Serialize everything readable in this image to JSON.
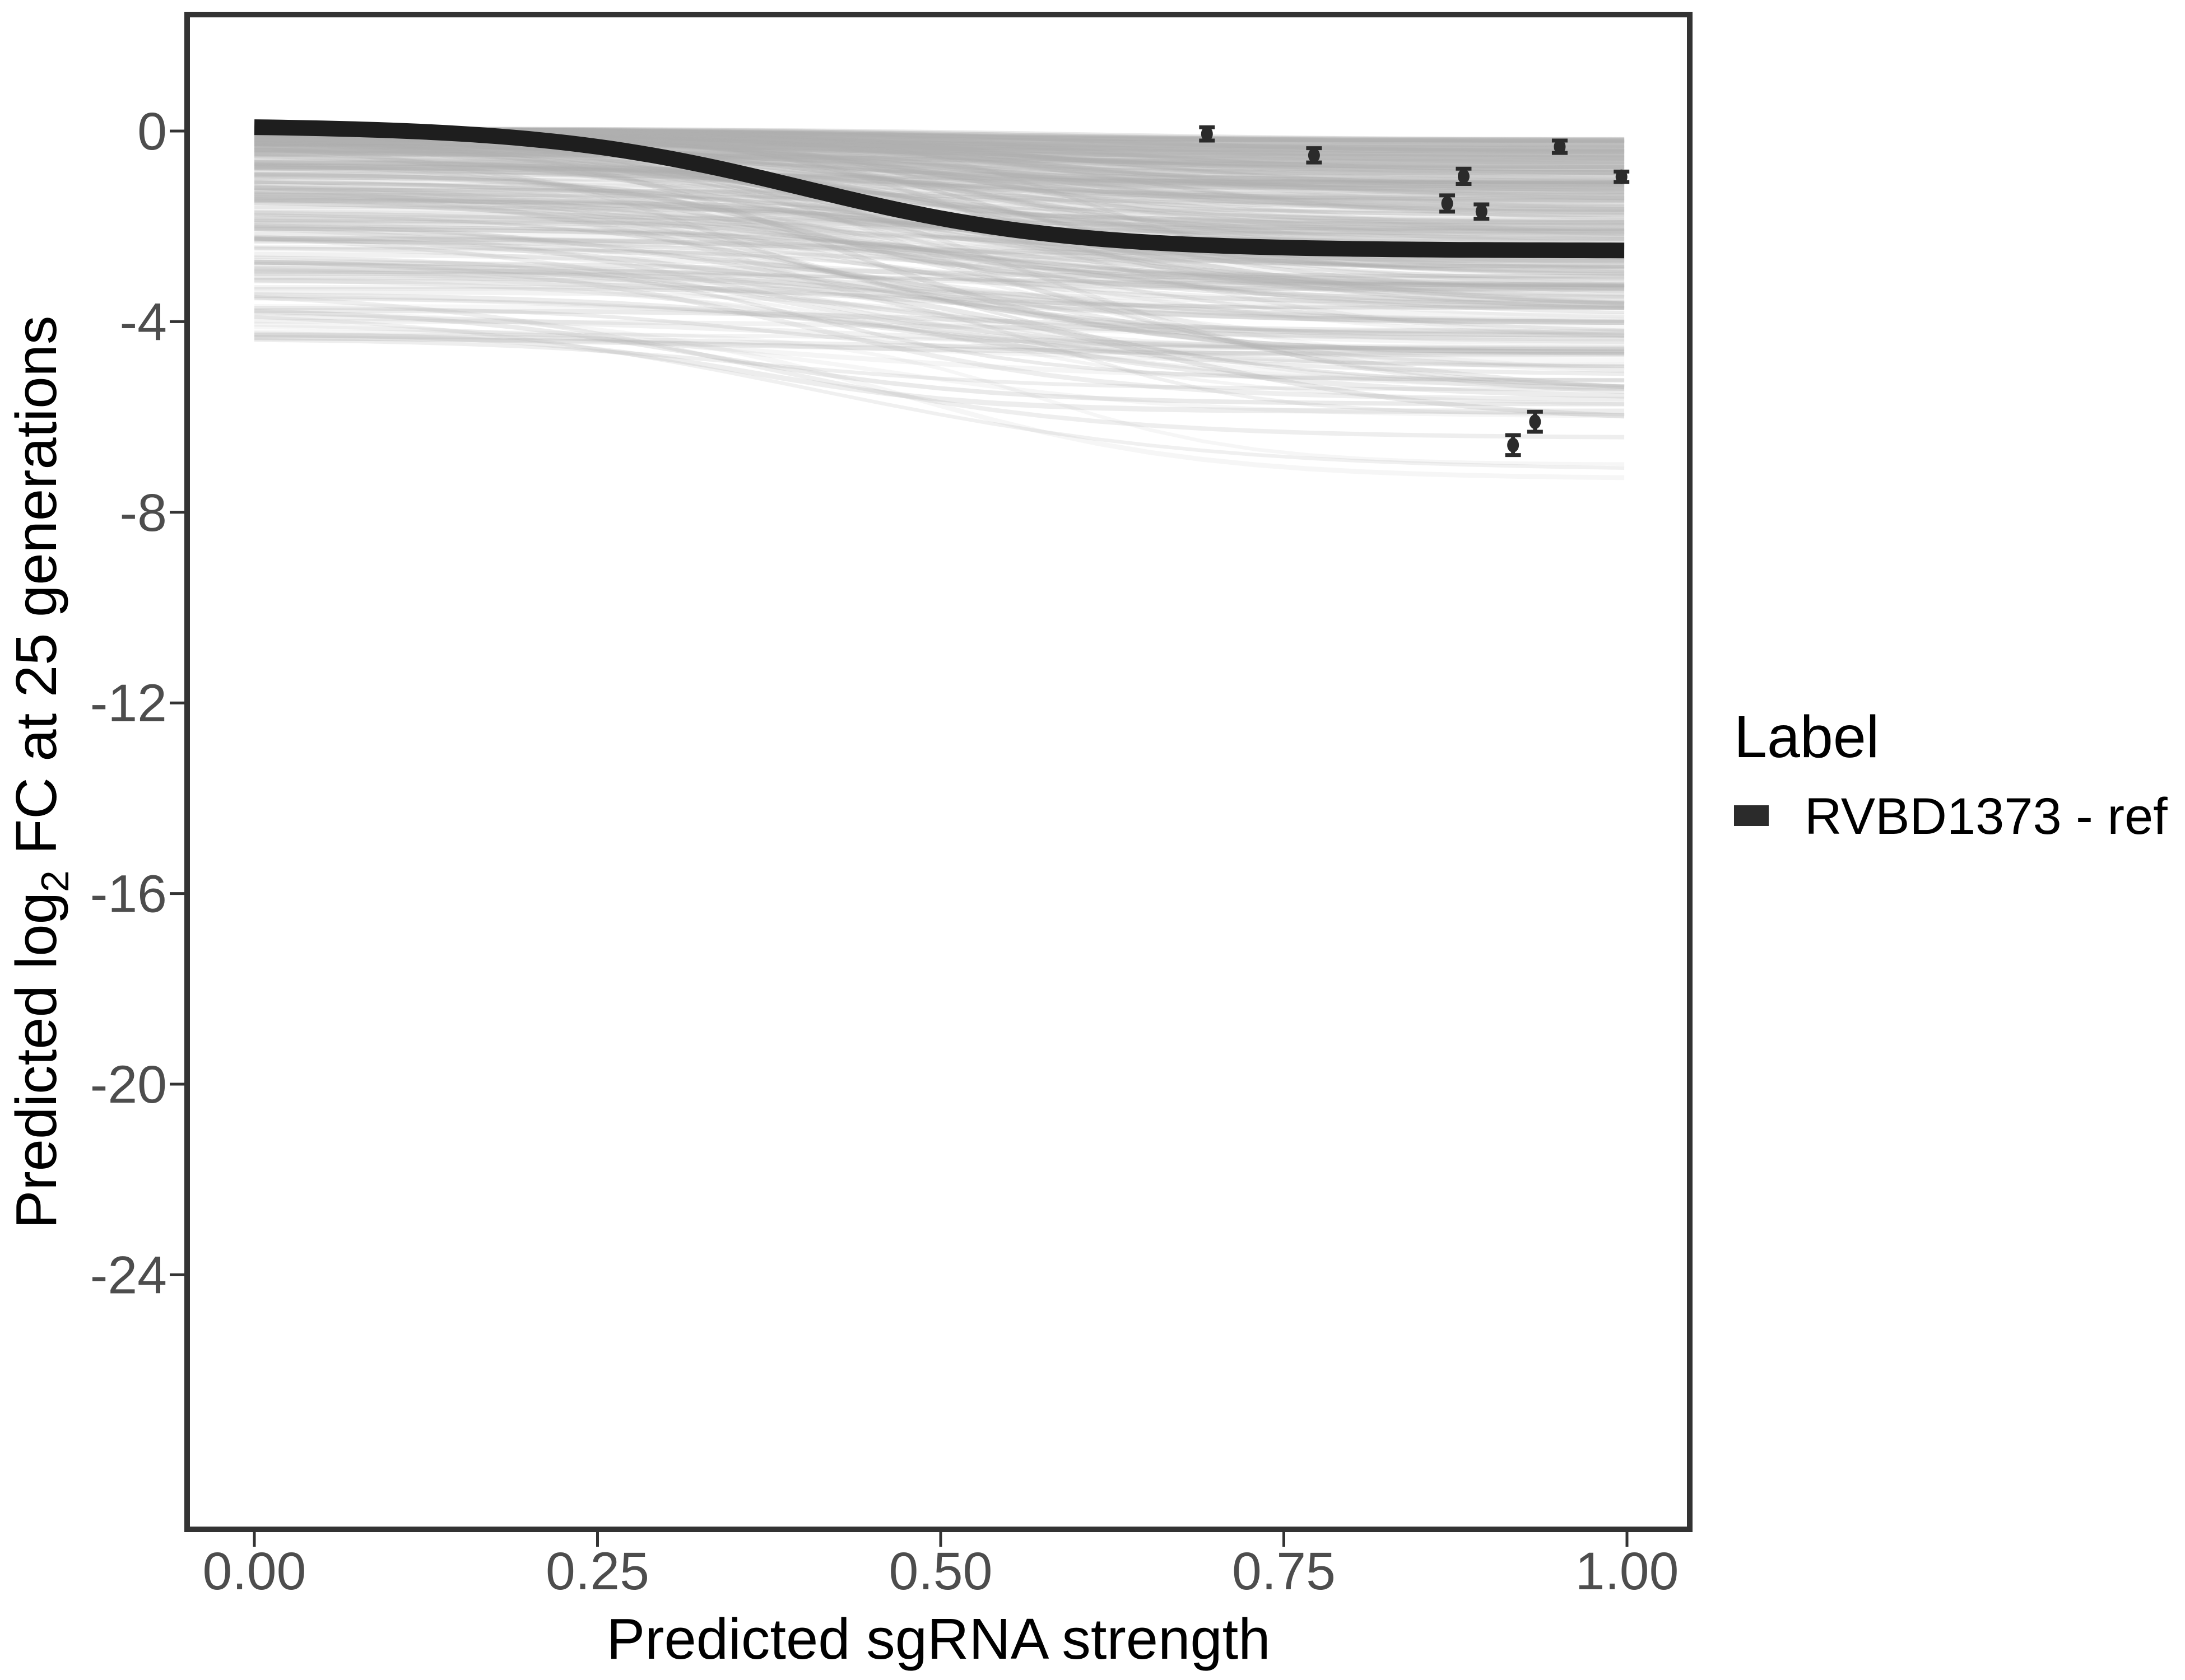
{
  "chart_data": {
    "type": "line",
    "title": "",
    "xlabel": "Predicted sgRNA strength",
    "ylabel": "Predicted log2 FC at 25 generations",
    "ylabel_parts": {
      "prefix": "Predicted  log",
      "subscript": "2",
      "suffix": " FC at 25 generations"
    },
    "xlim": [
      -0.05,
      1.046
    ],
    "ylim": [
      -29.3,
      2.44
    ],
    "grid": "off",
    "legend_position": "right",
    "x_ticks": [
      {
        "value": 0.0,
        "label": "0.00"
      },
      {
        "value": 0.25,
        "label": "0.25"
      },
      {
        "value": 0.5,
        "label": "0.50"
      },
      {
        "value": 0.75,
        "label": "0.75"
      },
      {
        "value": 1.0,
        "label": "1.00"
      }
    ],
    "y_ticks": [
      {
        "value": 0,
        "label": "0"
      },
      {
        "value": -4,
        "label": "-4"
      },
      {
        "value": -8,
        "label": "-8"
      },
      {
        "value": -12,
        "label": "-12"
      },
      {
        "value": -16,
        "label": "-16"
      },
      {
        "value": -20,
        "label": "-20"
      },
      {
        "value": -24,
        "label": "-24"
      }
    ],
    "reference_curve": {
      "name": "RVBD1373 - ref",
      "color": "#1e1e1e",
      "stroke_width": 28,
      "model": {
        "type": "logistic",
        "top": 0.12,
        "drop": 2.63,
        "midpoint": 0.4,
        "rate": 0.095,
        "x_start": 0.0,
        "x_end": 0.998
      },
      "points": [
        {
          "x": 0.0,
          "y": 0.08
        },
        {
          "x": 0.05,
          "y": 0.06
        },
        {
          "x": 0.1,
          "y": 0.01
        },
        {
          "x": 0.15,
          "y": -0.06
        },
        {
          "x": 0.2,
          "y": -0.17
        },
        {
          "x": 0.25,
          "y": -0.33
        },
        {
          "x": 0.3,
          "y": -0.56
        },
        {
          "x": 0.35,
          "y": -0.86
        },
        {
          "x": 0.4,
          "y": -1.2
        },
        {
          "x": 0.45,
          "y": -1.53
        },
        {
          "x": 0.5,
          "y": -1.83
        },
        {
          "x": 0.55,
          "y": -2.06
        },
        {
          "x": 0.6,
          "y": -2.22
        },
        {
          "x": 0.65,
          "y": -2.33
        },
        {
          "x": 0.7,
          "y": -2.4
        },
        {
          "x": 0.75,
          "y": -2.45
        },
        {
          "x": 0.8,
          "y": -2.47
        },
        {
          "x": 0.85,
          "y": -2.49
        },
        {
          "x": 0.9,
          "y": -2.5
        },
        {
          "x": 0.95,
          "y": -2.5
        },
        {
          "x": 1.0,
          "y": -2.51
        }
      ]
    },
    "measured_points": [
      {
        "x": 0.694,
        "y": -0.06,
        "err": 0.14
      },
      {
        "x": 0.772,
        "y": -0.51,
        "err": 0.15
      },
      {
        "x": 0.869,
        "y": -1.52,
        "err": 0.17
      },
      {
        "x": 0.881,
        "y": -0.95,
        "err": 0.16
      },
      {
        "x": 0.894,
        "y": -1.69,
        "err": 0.15
      },
      {
        "x": 0.917,
        "y": -6.59,
        "err": 0.21
      },
      {
        "x": 0.933,
        "y": -6.1,
        "err": 0.21
      },
      {
        "x": 0.951,
        "y": -0.33,
        "err": 0.13
      },
      {
        "x": 0.996,
        "y": -0.96,
        "err": 0.11
      }
    ],
    "point_style": {
      "color": "#2b2b2b",
      "radius": 10.5,
      "errorbar_stroke": 7,
      "cap_half_width": 14
    },
    "ensemble": {
      "description": "posterior sample sigmoid curves band",
      "count": 320,
      "seed": 777,
      "color": "#b0b0b0",
      "left_value_range": [
        0.05,
        -4.4
      ],
      "plateau_value_range": [
        -0.2,
        -7.3
      ],
      "midpoint_range": [
        0.33,
        0.63
      ],
      "rate_range": [
        0.07,
        0.16
      ]
    }
  },
  "legend": {
    "title": "Label",
    "items": [
      {
        "label": "RVBD1373 - ref",
        "key_color": "#2b2b2b"
      }
    ]
  },
  "style_colors": {
    "panel_border": "#333333",
    "tick_mark": "#333333",
    "tick_text": "#4d4d4d",
    "background": "#ffffff"
  }
}
